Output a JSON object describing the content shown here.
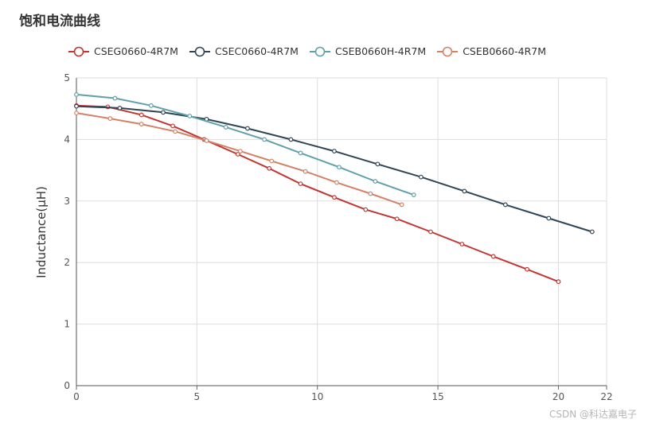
{
  "chart_data": {
    "type": "line",
    "title": "饱和电流曲线",
    "xlabel": "",
    "ylabel": "Inductance(μH)",
    "xlim": [
      0,
      22
    ],
    "ylim": [
      0,
      5
    ],
    "xticks": [
      "0",
      "5",
      "10",
      "15",
      "20",
      "22"
    ],
    "yticks": [
      "0",
      "1",
      "2",
      "3",
      "4",
      "5"
    ],
    "grid": true,
    "legend_position": "top-left",
    "series": [
      {
        "name": "CSEG0660-4R7M",
        "color": "#c23531",
        "x": [
          0,
          1.3,
          2.7,
          4.0,
          5.3,
          6.7,
          8.0,
          9.3,
          10.7,
          12.0,
          13.3,
          14.7,
          16.0,
          17.3,
          18.7,
          20.0
        ],
        "y": [
          4.55,
          4.53,
          4.4,
          4.22,
          4.0,
          3.76,
          3.53,
          3.28,
          3.06,
          2.86,
          2.71,
          2.5,
          2.3,
          2.1,
          1.89,
          1.69
        ]
      },
      {
        "name": "CSEC0660-4R7M",
        "color": "#2f4554",
        "x": [
          0,
          1.8,
          3.6,
          5.4,
          7.1,
          8.9,
          10.7,
          12.5,
          14.3,
          16.1,
          17.8,
          19.6,
          21.4
        ],
        "y": [
          4.54,
          4.51,
          4.44,
          4.33,
          4.18,
          4.0,
          3.81,
          3.6,
          3.39,
          3.16,
          2.94,
          2.72,
          2.5
        ]
      },
      {
        "name": "CSEB0660H-4R7M",
        "color": "#61a0a8",
        "x": [
          0,
          1.6,
          3.1,
          4.7,
          6.2,
          7.8,
          9.3,
          10.9,
          12.4,
          14.0
        ],
        "y": [
          4.73,
          4.67,
          4.55,
          4.38,
          4.2,
          4.0,
          3.78,
          3.55,
          3.32,
          3.1
        ]
      },
      {
        "name": "CSEB0660-4R7M",
        "color": "#d48265",
        "x": [
          0,
          1.4,
          2.7,
          4.1,
          5.4,
          6.8,
          8.1,
          9.5,
          10.8,
          12.2,
          13.5
        ],
        "y": [
          4.43,
          4.34,
          4.25,
          4.13,
          3.98,
          3.81,
          3.65,
          3.48,
          3.3,
          3.12,
          2.94
        ]
      }
    ]
  },
  "watermark": "CSDN @科达嘉电子"
}
